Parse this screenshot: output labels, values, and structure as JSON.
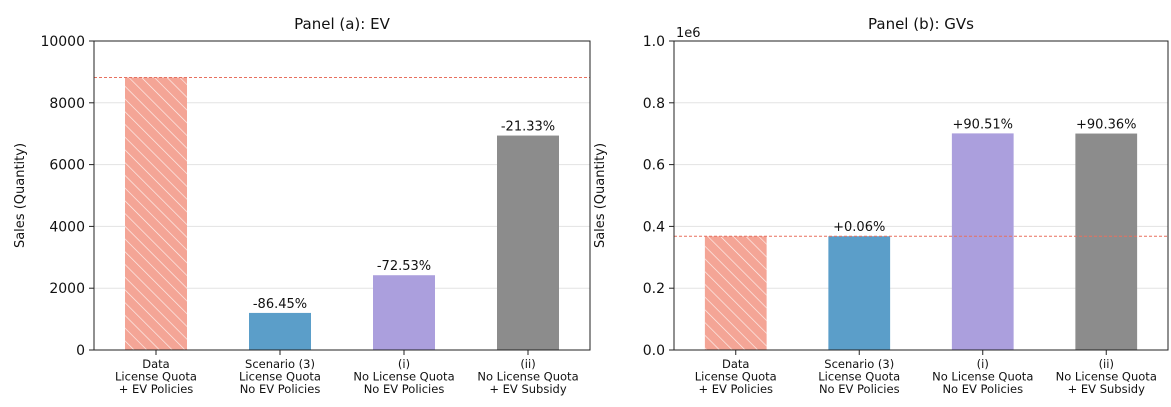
{
  "chart_data": [
    {
      "type": "bar",
      "title": "Panel (a): EV",
      "ylabel": "Sales (Quantity)",
      "xlabel": "",
      "ylim": [
        0,
        10000
      ],
      "yticks": [
        0,
        2000,
        4000,
        6000,
        8000,
        10000
      ],
      "ytick_labels": [
        "0",
        "2000",
        "4000",
        "6000",
        "8000",
        "10000"
      ],
      "offset_text": "",
      "reference_line": 8820,
      "grid": "horizontal",
      "categories": [
        [
          "Data",
          "License Quota",
          "+ EV Policies"
        ],
        [
          "Scenario (3)",
          "License Quota",
          "No EV Policies"
        ],
        [
          "(i)",
          "No License Quota",
          "No EV Policies"
        ],
        [
          "(ii)",
          "No License Quota",
          "+ EV Subsidy"
        ]
      ],
      "values": [
        8820,
        1200,
        2420,
        6940
      ],
      "data_labels": [
        "",
        "-86.45%",
        "-72.53%",
        "-21.33%"
      ],
      "colors": [
        "#f4a596",
        "#5b9ec9",
        "#ab9fdd",
        "#8c8c8c"
      ],
      "hatched": [
        true,
        false,
        false,
        false
      ]
    },
    {
      "type": "bar",
      "title": "Panel (b): GVs",
      "ylabel": "Sales (Quantity)",
      "xlabel": "",
      "ylim": [
        0,
        1000000
      ],
      "yticks": [
        0,
        200000,
        400000,
        600000,
        800000,
        1000000
      ],
      "ytick_labels": [
        "0.0",
        "0.2",
        "0.4",
        "0.6",
        "0.8",
        "1.0"
      ],
      "offset_text": "1e6",
      "reference_line": 368000,
      "grid": "horizontal",
      "categories": [
        [
          "Data",
          "License Quota",
          "+ EV Policies"
        ],
        [
          "Scenario (3)",
          "License Quota",
          "No EV Policies"
        ],
        [
          "(i)",
          "No License Quota",
          "No EV Policies"
        ],
        [
          "(ii)",
          "No License Quota",
          "+ EV Subsidy"
        ]
      ],
      "values": [
        368000,
        368200,
        701000,
        700500
      ],
      "data_labels": [
        "",
        "+0.06%",
        "+90.51%",
        "+90.36%"
      ],
      "colors": [
        "#f4a596",
        "#5b9ec9",
        "#ab9fdd",
        "#8c8c8c"
      ],
      "hatched": [
        true,
        false,
        false,
        false
      ]
    }
  ]
}
